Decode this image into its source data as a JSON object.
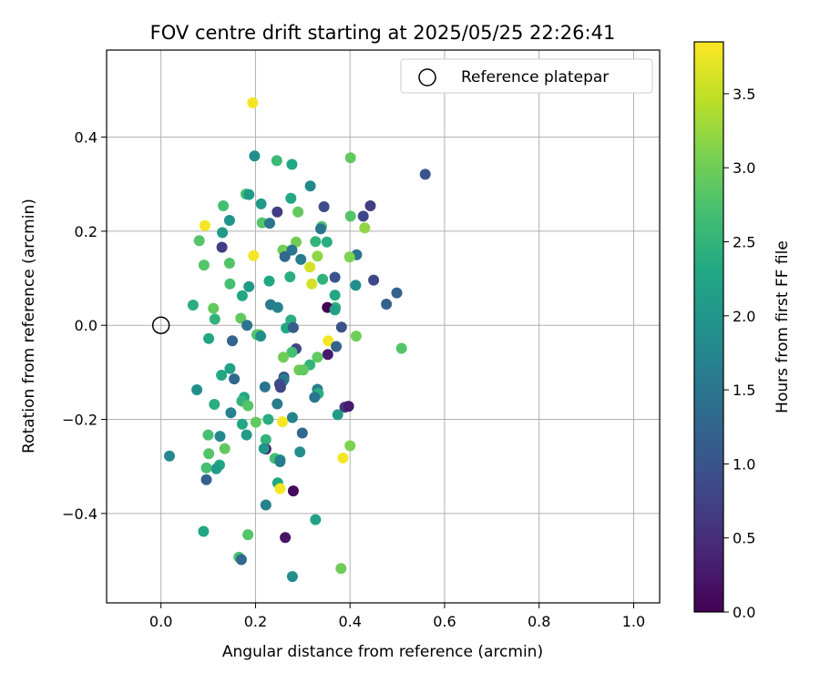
{
  "chart_data": {
    "type": "scatter",
    "title": "FOV centre drift starting at 2025/05/25 22:26:41",
    "xlabel": "Angular distance from reference (arcmin)",
    "ylabel": "Rotation from reference (arcmin)",
    "xlim": [
      -0.115,
      1.055
    ],
    "ylim": [
      -0.59,
      0.585
    ],
    "xticks": [
      0.0,
      0.2,
      0.4,
      0.6,
      0.8,
      1.0
    ],
    "xtick_labels": [
      "0.0",
      "0.2",
      "0.4",
      "0.6",
      "0.8",
      "1.0"
    ],
    "yticks": [
      -0.4,
      -0.2,
      0.0,
      0.2,
      0.4
    ],
    "ytick_labels": [
      "−0.4",
      "−0.2",
      "0.0",
      "0.2",
      "0.4"
    ],
    "grid": true,
    "legend": {
      "position": "top-right",
      "entries": [
        "Reference platepar"
      ]
    },
    "reference_point": {
      "x": 0.0,
      "y": 0.0
    },
    "colorbar": {
      "label": "Hours from first FF file",
      "colormap": "viridis",
      "range": [
        0.0,
        3.85
      ],
      "ticks": [
        0.0,
        0.5,
        1.0,
        1.5,
        2.0,
        2.5,
        3.0,
        3.5
      ],
      "tick_labels": [
        "0.0",
        "0.5",
        "1.0",
        "1.5",
        "2.0",
        "2.5",
        "3.0",
        "3.5"
      ]
    },
    "points": [
      [
        0.194,
        0.473,
        3.8
      ],
      [
        0.198,
        0.36,
        1.9
      ],
      [
        0.245,
        0.35,
        2.6
      ],
      [
        0.277,
        0.342,
        2.3
      ],
      [
        0.401,
        0.356,
        2.9
      ],
      [
        0.559,
        0.321,
        1.0
      ],
      [
        0.316,
        0.296,
        1.8
      ],
      [
        0.18,
        0.279,
        2.7
      ],
      [
        0.186,
        0.278,
        2.1
      ],
      [
        0.212,
        0.258,
        2.1
      ],
      [
        0.275,
        0.27,
        2.3
      ],
      [
        0.132,
        0.254,
        2.7
      ],
      [
        0.345,
        0.252,
        0.9
      ],
      [
        0.443,
        0.254,
        0.7
      ],
      [
        0.246,
        0.241,
        0.7
      ],
      [
        0.29,
        0.241,
        2.9
      ],
      [
        0.428,
        0.232,
        0.8
      ],
      [
        0.401,
        0.232,
        2.8
      ],
      [
        0.145,
        0.223,
        2.0
      ],
      [
        0.214,
        0.218,
        2.8
      ],
      [
        0.23,
        0.217,
        1.5
      ],
      [
        0.34,
        0.21,
        2.8
      ],
      [
        0.338,
        0.205,
        1.5
      ],
      [
        0.431,
        0.207,
        3.2
      ],
      [
        0.093,
        0.212,
        3.8
      ],
      [
        0.13,
        0.197,
        2.1
      ],
      [
        0.081,
        0.18,
        2.8
      ],
      [
        0.327,
        0.178,
        2.5
      ],
      [
        0.351,
        0.177,
        2.4
      ],
      [
        0.286,
        0.177,
        3.0
      ],
      [
        0.129,
        0.166,
        0.7
      ],
      [
        0.258,
        0.16,
        3.0
      ],
      [
        0.268,
        0.157,
        3.1
      ],
      [
        0.277,
        0.16,
        1.5
      ],
      [
        0.196,
        0.148,
        3.8
      ],
      [
        0.262,
        0.146,
        1.3
      ],
      [
        0.296,
        0.14,
        1.6
      ],
      [
        0.331,
        0.147,
        3.2
      ],
      [
        0.414,
        0.15,
        1.5
      ],
      [
        0.399,
        0.145,
        3.1
      ],
      [
        0.091,
        0.128,
        2.8
      ],
      [
        0.145,
        0.132,
        2.8
      ],
      [
        0.315,
        0.124,
        3.6
      ],
      [
        0.273,
        0.103,
        2.4
      ],
      [
        0.229,
        0.094,
        2.3
      ],
      [
        0.342,
        0.098,
        2.5
      ],
      [
        0.368,
        0.102,
        1.0
      ],
      [
        0.146,
        0.088,
        2.7
      ],
      [
        0.319,
        0.088,
        3.6
      ],
      [
        0.186,
        0.082,
        2.1
      ],
      [
        0.412,
        0.085,
        1.9
      ],
      [
        0.45,
        0.096,
        0.8
      ],
      [
        0.499,
        0.069,
        1.2
      ],
      [
        0.172,
        0.063,
        2.3
      ],
      [
        0.368,
        0.064,
        2.3
      ],
      [
        0.068,
        0.043,
        2.4
      ],
      [
        0.111,
        0.036,
        2.9
      ],
      [
        0.232,
        0.044,
        1.6
      ],
      [
        0.247,
        0.038,
        1.7
      ],
      [
        0.369,
        0.038,
        2.5
      ],
      [
        0.477,
        0.045,
        1.2
      ],
      [
        0.352,
        0.038,
        0.0
      ],
      [
        0.368,
        0.033,
        2.2
      ],
      [
        0.114,
        0.013,
        2.5
      ],
      [
        0.169,
        0.015,
        2.9
      ],
      [
        0.275,
        0.011,
        2.4
      ],
      [
        0.182,
        0.0,
        1.5
      ],
      [
        0.265,
        -0.006,
        2.3
      ],
      [
        0.28,
        -0.005,
        1.1
      ],
      [
        0.382,
        -0.004,
        1.0
      ],
      [
        0.203,
        -0.02,
        2.7
      ],
      [
        0.208,
        -0.02,
        2.9
      ],
      [
        0.211,
        -0.023,
        1.9
      ],
      [
        0.101,
        -0.028,
        2.3
      ],
      [
        0.151,
        -0.033,
        1.2
      ],
      [
        0.354,
        -0.033,
        3.8
      ],
      [
        0.413,
        -0.023,
        3.0
      ],
      [
        0.371,
        -0.045,
        1.2
      ],
      [
        0.509,
        -0.049,
        2.8
      ],
      [
        0.286,
        -0.05,
        0.8
      ],
      [
        0.277,
        -0.057,
        2.7
      ],
      [
        0.259,
        -0.068,
        3.0
      ],
      [
        0.353,
        -0.062,
        0.3
      ],
      [
        0.331,
        -0.068,
        2.9
      ],
      [
        0.315,
        -0.084,
        2.5
      ],
      [
        0.292,
        -0.095,
        3.0
      ],
      [
        0.301,
        -0.095,
        2.9
      ],
      [
        0.128,
        -0.106,
        2.3
      ],
      [
        0.146,
        -0.092,
        2.2
      ],
      [
        0.155,
        -0.114,
        1.3
      ],
      [
        0.26,
        -0.11,
        0.9
      ],
      [
        0.26,
        -0.115,
        1.7
      ],
      [
        0.257,
        -0.12,
        1.5
      ],
      [
        0.251,
        -0.125,
        0.9
      ],
      [
        0.22,
        -0.131,
        1.5
      ],
      [
        0.253,
        -0.132,
        0.8
      ],
      [
        0.076,
        -0.137,
        1.9
      ],
      [
        0.331,
        -0.136,
        1.6
      ],
      [
        0.333,
        -0.145,
        2.4
      ],
      [
        0.325,
        -0.153,
        1.5
      ],
      [
        0.176,
        -0.153,
        2.3
      ],
      [
        0.171,
        -0.161,
        2.5
      ],
      [
        0.113,
        -0.168,
        2.4
      ],
      [
        0.246,
        -0.167,
        1.6
      ],
      [
        0.184,
        -0.171,
        2.8
      ],
      [
        0.389,
        -0.174,
        0.6
      ],
      [
        0.397,
        -0.172,
        0.3
      ],
      [
        0.374,
        -0.19,
        2.1
      ],
      [
        0.148,
        -0.186,
        1.7
      ],
      [
        0.278,
        -0.196,
        1.7
      ],
      [
        0.227,
        -0.2,
        2.4
      ],
      [
        0.172,
        -0.21,
        2.3
      ],
      [
        0.201,
        -0.206,
        2.9
      ],
      [
        0.257,
        -0.205,
        3.8
      ],
      [
        0.299,
        -0.229,
        1.3
      ],
      [
        0.1,
        -0.233,
        2.7
      ],
      [
        0.125,
        -0.236,
        1.8
      ],
      [
        0.222,
        -0.243,
        2.5
      ],
      [
        0.181,
        -0.233,
        2.1
      ],
      [
        0.135,
        -0.262,
        2.9
      ],
      [
        0.222,
        -0.263,
        0.1
      ],
      [
        0.4,
        -0.256,
        3.1
      ],
      [
        0.218,
        -0.262,
        2.0
      ],
      [
        0.294,
        -0.269,
        1.9
      ],
      [
        0.018,
        -0.278,
        1.8
      ],
      [
        0.101,
        -0.273,
        2.8
      ],
      [
        0.385,
        -0.282,
        3.8
      ],
      [
        0.241,
        -0.283,
        2.7
      ],
      [
        0.252,
        -0.286,
        1.9
      ],
      [
        0.252,
        -0.29,
        1.6
      ],
      [
        0.124,
        -0.297,
        2.3
      ],
      [
        0.117,
        -0.305,
        2.1
      ],
      [
        0.096,
        -0.303,
        2.7
      ],
      [
        0.096,
        -0.328,
        1.2
      ],
      [
        0.247,
        -0.335,
        2.3
      ],
      [
        0.252,
        -0.347,
        3.8
      ],
      [
        0.28,
        -0.352,
        0.1
      ],
      [
        0.222,
        -0.382,
        1.7
      ],
      [
        0.327,
        -0.413,
        2.2
      ],
      [
        0.09,
        -0.438,
        2.3
      ],
      [
        0.184,
        -0.445,
        2.8
      ],
      [
        0.263,
        -0.451,
        0.2
      ],
      [
        0.165,
        -0.493,
        2.7
      ],
      [
        0.17,
        -0.498,
        1.3
      ],
      [
        0.381,
        -0.517,
        3.0
      ],
      [
        0.278,
        -0.534,
        1.9
      ]
    ]
  }
}
